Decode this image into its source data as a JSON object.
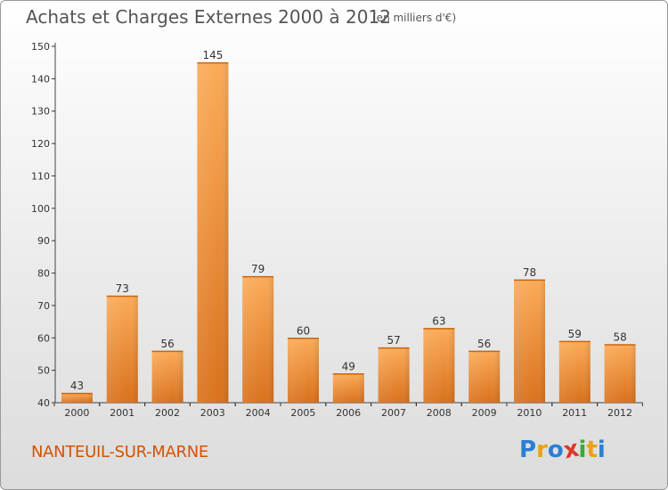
{
  "header": {
    "title": "Achats et Charges Externes 2000 à 2012",
    "unit": "(en milliers d'€)"
  },
  "footer": {
    "city": "NANTEUIL-SUR-MARNE",
    "logo": "Proxiti",
    "logo_colors": [
      "#2a7fd4",
      "#e8a317",
      "#2a7fd4",
      "#d93a2b",
      "#3aaa35",
      "#e8a317",
      "#2a7fd4"
    ]
  },
  "colors": {
    "bar_light": "#fbab58",
    "bar_dark": "#d9711c",
    "axis": "#444444",
    "grid_tick": "#333333"
  },
  "chart_data": {
    "type": "bar",
    "title": "Achats et Charges Externes 2000 à 2012",
    "categories": [
      "2000",
      "2001",
      "2002",
      "2003",
      "2004",
      "2005",
      "2006",
      "2007",
      "2008",
      "2009",
      "2010",
      "2011",
      "2012"
    ],
    "values": [
      43,
      73,
      56,
      145,
      79,
      60,
      49,
      57,
      63,
      56,
      78,
      59,
      58
    ],
    "ylim": [
      40,
      150
    ],
    "yticks": [
      40,
      50,
      60,
      70,
      80,
      90,
      100,
      110,
      120,
      130,
      140,
      150
    ],
    "xlabel": "",
    "ylabel": "",
    "grid": false
  }
}
